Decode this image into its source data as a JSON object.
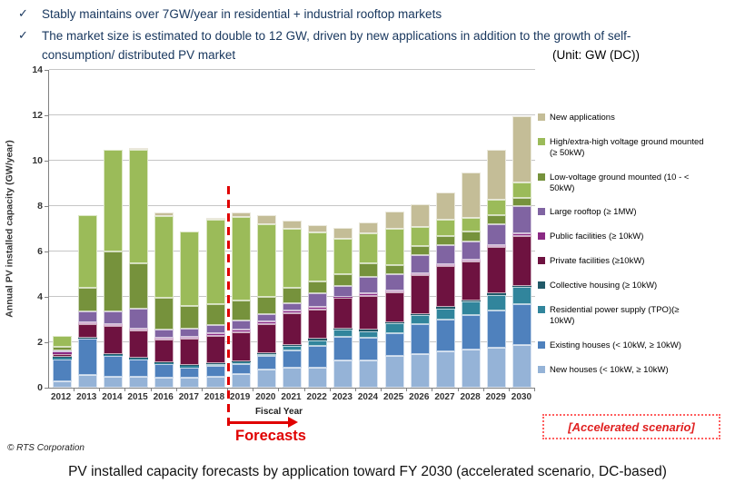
{
  "bullets": {
    "check": "✓",
    "items": [
      "Stably maintains over 7GW/year in residential + industrial rooftop markets",
      "The market size is estimated to double to 12 GW, driven by new applications in addition to the growth of self-consumption/ distributed PV market"
    ]
  },
  "unit_label": "(Unit: GW (DC))",
  "chart_data": {
    "type": "bar",
    "subtype": "stacked",
    "xlabel": "Fiscal Year",
    "ylabel": "Annual PV installed capacity (GW/year)",
    "ylim": [
      0,
      14
    ],
    "yticks": [
      0,
      2,
      4,
      6,
      8,
      10,
      12,
      14
    ],
    "grid": true,
    "legend_position": "right",
    "forecast_boundary_after_category": "2018",
    "categories": [
      "2012",
      "2013",
      "2014",
      "2015",
      "2016",
      "2017",
      "2018",
      "2019",
      "2020",
      "2021",
      "2022",
      "2023",
      "2024",
      "2025",
      "2026",
      "2027",
      "2028",
      "2029",
      "2030"
    ],
    "series": [
      {
        "name": "New houses (< 10kW, ≥ 10kW)",
        "color": "#95b3d7",
        "values": [
          0.3,
          0.55,
          0.5,
          0.5,
          0.45,
          0.45,
          0.5,
          0.6,
          0.8,
          0.9,
          0.9,
          1.2,
          1.2,
          1.4,
          1.5,
          1.6,
          1.7,
          1.75,
          1.9
        ]
      },
      {
        "name": "Existing houses (< 10kW, ≥ 10kW)",
        "color": "#4f81bd",
        "values": [
          0.95,
          1.6,
          0.9,
          0.75,
          0.6,
          0.45,
          0.45,
          0.45,
          0.6,
          0.73,
          0.95,
          1.05,
          1.0,
          1.0,
          1.3,
          1.4,
          1.5,
          1.65,
          1.8
        ]
      },
      {
        "name": "Residential power supply (TPO)(≥ 10kW)",
        "color": "#31859c",
        "values": [
          0.08,
          0.05,
          0.05,
          0.05,
          0.05,
          0.08,
          0.1,
          0.1,
          0.1,
          0.2,
          0.25,
          0.3,
          0.3,
          0.45,
          0.4,
          0.5,
          0.6,
          0.7,
          0.75
        ]
      },
      {
        "name": "Collective housing (≥ 10kW)",
        "color": "#215968",
        "values": [
          0.02,
          0.02,
          0.02,
          0.02,
          0.02,
          0.02,
          0.03,
          0.03,
          0.03,
          0.05,
          0.05,
          0.05,
          0.05,
          0.05,
          0.05,
          0.05,
          0.05,
          0.05,
          0.05
        ]
      },
      {
        "name": "Private facilities (≥10kW)",
        "color": "#6e1240",
        "values": [
          0.15,
          0.58,
          1.25,
          1.2,
          1.0,
          1.15,
          1.2,
          1.25,
          1.27,
          1.4,
          1.3,
          1.35,
          1.5,
          1.3,
          1.7,
          1.8,
          1.7,
          2.05,
          2.2
        ]
      },
      {
        "name": "Public facilities (≥ 10kW)",
        "color": "#8a2a84",
        "values": [
          0.05,
          0.1,
          0.1,
          0.1,
          0.1,
          0.1,
          0.12,
          0.15,
          0.13,
          0.13,
          0.1,
          0.05,
          0.1,
          0.1,
          0.1,
          0.1,
          0.1,
          0.1,
          0.1
        ]
      },
      {
        "name": "Large rooftop (≥ 1MW)",
        "color": "#8064a2",
        "values": [
          0.1,
          0.45,
          0.55,
          0.85,
          0.35,
          0.35,
          0.35,
          0.4,
          0.33,
          0.33,
          0.6,
          0.5,
          0.75,
          0.7,
          0.8,
          0.85,
          0.8,
          0.9,
          1.2
        ]
      },
      {
        "name": "Low-voltage ground mounted (10 - < 50kW)",
        "color": "#76923c",
        "values": [
          0.15,
          1.05,
          2.65,
          2.0,
          1.4,
          1.0,
          0.95,
          0.85,
          0.73,
          0.67,
          0.55,
          0.5,
          0.6,
          0.4,
          0.4,
          0.4,
          0.45,
          0.4,
          0.35
        ]
      },
      {
        "name": "High/extra-high voltage ground mounted  (≥ 50kW)",
        "color": "#9bbb59",
        "values": [
          0.5,
          3.2,
          4.45,
          5.0,
          3.6,
          3.3,
          3.7,
          3.7,
          3.2,
          2.6,
          2.15,
          1.55,
          1.3,
          1.6,
          0.85,
          0.7,
          0.6,
          0.7,
          0.7
        ]
      },
      {
        "name": "New applications",
        "color": "#c4bd97",
        "values": [
          0.0,
          0.0,
          0.0,
          0.1,
          0.15,
          0.0,
          0.1,
          0.2,
          0.4,
          0.35,
          0.33,
          0.5,
          0.5,
          0.75,
          1.0,
          1.2,
          2.0,
          2.2,
          2.9
        ]
      }
    ]
  },
  "annotations": {
    "forecast_label": "Forecasts",
    "scenario_label": "[Accelerated scenario]"
  },
  "footer": {
    "copyright": "© RTS Corporation"
  },
  "caption": "PV installed capacity forecasts by application toward FY 2030 (accelerated scenario, DC-based)"
}
